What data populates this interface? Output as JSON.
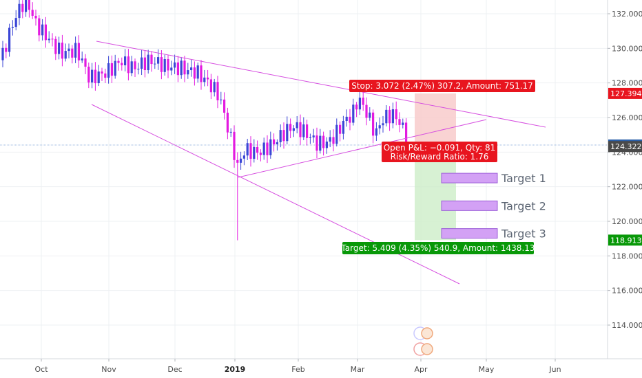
{
  "chart_data": {
    "type": "candlestick",
    "y_ticks": [
      "132.000",
      "130.000",
      "128.000",
      "126.000",
      "124.000",
      "122.000",
      "120.000",
      "118.000",
      "116.000",
      "114.000"
    ],
    "y_tick_values": [
      132,
      130,
      128,
      126,
      124,
      122,
      120,
      118,
      116,
      114
    ],
    "x_ticks": [
      {
        "label": "Oct",
        "bold": false
      },
      {
        "label": "Nov",
        "bold": false
      },
      {
        "label": "Dec",
        "bold": false
      },
      {
        "label": "2019",
        "bold": true
      },
      {
        "label": "Feb",
        "bold": false
      },
      {
        "label": "Mar",
        "bold": false
      },
      {
        "label": "Apr",
        "bold": false
      },
      {
        "label": "May",
        "bold": false
      },
      {
        "label": "Jun",
        "bold": false
      }
    ],
    "ylim": [
      112.6,
      133.3
    ],
    "price_badges": [
      {
        "value": "127.394",
        "price": 127.394,
        "color": "#e8151f"
      },
      {
        "value": "124.413",
        "price": 124.413,
        "color": "#2a5fa8"
      },
      {
        "value": "124.322",
        "price": 124.322,
        "color": "#4a4a4a"
      },
      {
        "value": "118.913",
        "price": 118.913,
        "color": "#089808"
      }
    ],
    "position": {
      "entry": 124.322,
      "stop": 127.394,
      "target": 118.913,
      "stop_label": "Stop: 3.072 (2.47%) 307.2, Amount: 751.17",
      "open_pl_label": "Open P&L: −0.091, Qty: 81",
      "rr_label": "Risk/Reward Ratio: 1.76",
      "target_label": "Target: 5.409 (4.35%) 540.9, Amount: 1438.13"
    },
    "targets": [
      {
        "label": "Target 1",
        "price": 122.5
      },
      {
        "label": "Target 2",
        "price": 120.9
      },
      {
        "label": "Target 3",
        "price": 119.3
      }
    ],
    "colors": {
      "up": "#3b46d6",
      "down": "#e31ae0",
      "trend": "#d64fe0",
      "stop_zone": "#f8c8c8",
      "target_zone": "#cdeec8",
      "target_box": "#d3a1f5"
    }
  }
}
